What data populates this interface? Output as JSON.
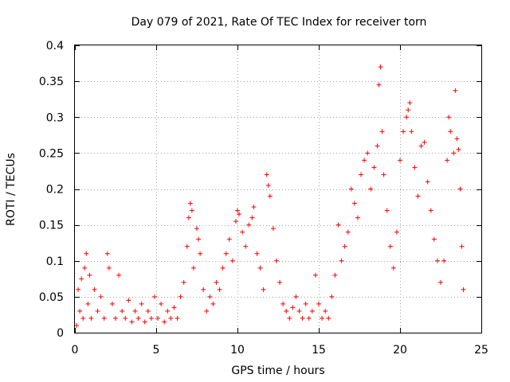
{
  "chart_data": {
    "type": "scatter",
    "title": "Day 079 of 2021, Rate Of TEC Index for receiver torn",
    "xlabel": "GPS time / hours",
    "ylabel": "ROTI / TECUs",
    "xlim": [
      0,
      25
    ],
    "ylim": [
      0,
      0.4
    ],
    "x_ticks": [
      0,
      5,
      10,
      15,
      20,
      25
    ],
    "x_tick_labels": [
      "0",
      "5",
      "10",
      "15",
      "20",
      "25"
    ],
    "y_ticks": [
      0,
      0.05,
      0.1,
      0.15,
      0.2,
      0.25,
      0.3,
      0.35,
      0.4
    ],
    "y_tick_labels": [
      "0",
      "0.05",
      "0.1",
      "0.15",
      "0.2",
      "0.25",
      "0.3",
      "0.35",
      "0.4"
    ],
    "grid": true,
    "marker": "+",
    "marker_color": "#ff0000",
    "series": [
      {
        "name": "ROTI",
        "points": [
          [
            0.1,
            0.01
          ],
          [
            0.2,
            0.06
          ],
          [
            0.3,
            0.03
          ],
          [
            0.4,
            0.075
          ],
          [
            0.5,
            0.02
          ],
          [
            0.6,
            0.09
          ],
          [
            0.7,
            0.11
          ],
          [
            0.8,
            0.04
          ],
          [
            0.9,
            0.08
          ],
          [
            1.0,
            0.02
          ],
          [
            1.2,
            0.06
          ],
          [
            1.4,
            0.03
          ],
          [
            1.6,
            0.05
          ],
          [
            1.8,
            0.02
          ],
          [
            2.0,
            0.11
          ],
          [
            2.1,
            0.09
          ],
          [
            2.3,
            0.04
          ],
          [
            2.5,
            0.02
          ],
          [
            2.7,
            0.08
          ],
          [
            2.9,
            0.03
          ],
          [
            3.1,
            0.02
          ],
          [
            3.3,
            0.045
          ],
          [
            3.5,
            0.015
          ],
          [
            3.7,
            0.03
          ],
          [
            3.9,
            0.02
          ],
          [
            4.1,
            0.04
          ],
          [
            4.3,
            0.015
          ],
          [
            4.5,
            0.03
          ],
          [
            4.7,
            0.02
          ],
          [
            4.9,
            0.05
          ],
          [
            5.1,
            0.02
          ],
          [
            5.3,
            0.04
          ],
          [
            5.5,
            0.015
          ],
          [
            5.7,
            0.03
          ],
          [
            5.9,
            0.02
          ],
          [
            6.1,
            0.035
          ],
          [
            6.3,
            0.02
          ],
          [
            6.5,
            0.05
          ],
          [
            6.7,
            0.07
          ],
          [
            6.9,
            0.12
          ],
          [
            7.0,
            0.16
          ],
          [
            7.1,
            0.18
          ],
          [
            7.2,
            0.17
          ],
          [
            7.3,
            0.09
          ],
          [
            7.5,
            0.145
          ],
          [
            7.6,
            0.13
          ],
          [
            7.7,
            0.11
          ],
          [
            7.9,
            0.06
          ],
          [
            8.1,
            0.03
          ],
          [
            8.3,
            0.05
          ],
          [
            8.5,
            0.04
          ],
          [
            8.7,
            0.07
          ],
          [
            8.9,
            0.06
          ],
          [
            9.1,
            0.09
          ],
          [
            9.3,
            0.11
          ],
          [
            9.5,
            0.13
          ],
          [
            9.7,
            0.1
          ],
          [
            9.9,
            0.155
          ],
          [
            10.0,
            0.17
          ],
          [
            10.1,
            0.165
          ],
          [
            10.3,
            0.14
          ],
          [
            10.5,
            0.12
          ],
          [
            10.7,
            0.15
          ],
          [
            10.9,
            0.16
          ],
          [
            11.0,
            0.175
          ],
          [
            11.2,
            0.11
          ],
          [
            11.4,
            0.09
          ],
          [
            11.6,
            0.06
          ],
          [
            11.8,
            0.22
          ],
          [
            11.9,
            0.205
          ],
          [
            12.0,
            0.19
          ],
          [
            12.2,
            0.145
          ],
          [
            12.4,
            0.1
          ],
          [
            12.6,
            0.07
          ],
          [
            12.8,
            0.04
          ],
          [
            13.0,
            0.03
          ],
          [
            13.2,
            0.02
          ],
          [
            13.4,
            0.035
          ],
          [
            13.6,
            0.05
          ],
          [
            13.8,
            0.03
          ],
          [
            14.0,
            0.02
          ],
          [
            14.2,
            0.04
          ],
          [
            14.4,
            0.02
          ],
          [
            14.6,
            0.03
          ],
          [
            14.8,
            0.08
          ],
          [
            15.0,
            0.04
          ],
          [
            15.2,
            0.02
          ],
          [
            15.4,
            0.03
          ],
          [
            15.6,
            0.02
          ],
          [
            15.8,
            0.05
          ],
          [
            16.0,
            0.08
          ],
          [
            16.2,
            0.15
          ],
          [
            16.4,
            0.1
          ],
          [
            16.6,
            0.12
          ],
          [
            16.8,
            0.14
          ],
          [
            17.0,
            0.2
          ],
          [
            17.2,
            0.18
          ],
          [
            17.4,
            0.16
          ],
          [
            17.6,
            0.22
          ],
          [
            17.8,
            0.24
          ],
          [
            18.0,
            0.25
          ],
          [
            18.2,
            0.2
          ],
          [
            18.4,
            0.23
          ],
          [
            18.6,
            0.26
          ],
          [
            18.7,
            0.345
          ],
          [
            18.8,
            0.37
          ],
          [
            18.9,
            0.28
          ],
          [
            19.0,
            0.22
          ],
          [
            19.2,
            0.17
          ],
          [
            19.4,
            0.12
          ],
          [
            19.6,
            0.09
          ],
          [
            19.8,
            0.14
          ],
          [
            20.0,
            0.24
          ],
          [
            20.2,
            0.28
          ],
          [
            20.4,
            0.3
          ],
          [
            20.5,
            0.31
          ],
          [
            20.6,
            0.32
          ],
          [
            20.7,
            0.28
          ],
          [
            20.9,
            0.23
          ],
          [
            21.1,
            0.19
          ],
          [
            21.3,
            0.26
          ],
          [
            21.5,
            0.265
          ],
          [
            21.7,
            0.21
          ],
          [
            21.9,
            0.17
          ],
          [
            22.1,
            0.13
          ],
          [
            22.3,
            0.1
          ],
          [
            22.5,
            0.07
          ],
          [
            22.7,
            0.1
          ],
          [
            22.9,
            0.24
          ],
          [
            23.0,
            0.3
          ],
          [
            23.1,
            0.28
          ],
          [
            23.3,
            0.25
          ],
          [
            23.4,
            0.337
          ],
          [
            23.5,
            0.27
          ],
          [
            23.6,
            0.255
          ],
          [
            23.7,
            0.2
          ],
          [
            23.8,
            0.12
          ],
          [
            23.9,
            0.06
          ]
        ]
      }
    ]
  }
}
